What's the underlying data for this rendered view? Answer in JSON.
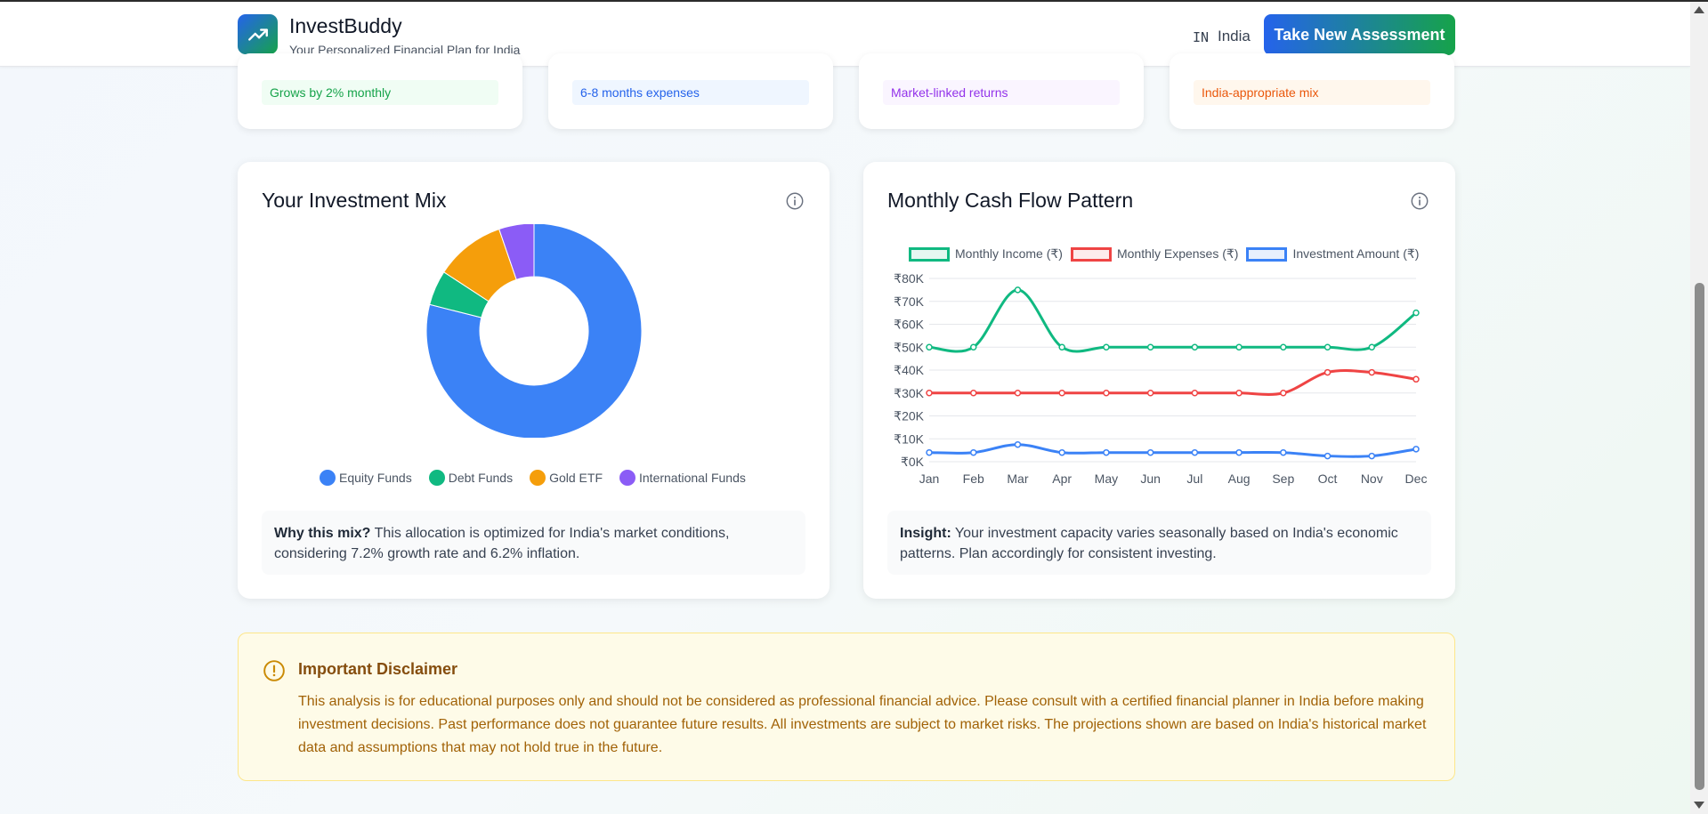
{
  "header": {
    "brand": "InvestBuddy",
    "tagline": "Your Personalized Financial Plan for India",
    "country_code": "IN",
    "country_name": "India",
    "cta_label": "Take New Assessment"
  },
  "summary_tags": [
    {
      "label": "Grows by 2% monthly",
      "bg": "#f0fdf4",
      "color": "#16a34a"
    },
    {
      "label": "6-8 months expenses",
      "bg": "#eff6ff",
      "color": "#2563eb"
    },
    {
      "label": "Market-linked returns",
      "bg": "#faf5ff",
      "color": "#9333ea"
    },
    {
      "label": "India-appropriate mix",
      "bg": "#fff7ed",
      "color": "#ea580c"
    }
  ],
  "investment_mix": {
    "title": "Your Investment Mix",
    "note_bold": "Why this mix?",
    "note_text": " This allocation is optimized for India's market conditions, considering 7.2% growth rate and 6.2% inflation."
  },
  "cash_flow": {
    "title": "Monthly Cash Flow Pattern",
    "note_bold": "Insight:",
    "note_text": " Your investment capacity varies seasonally based on India's economic patterns. Plan accordingly for consistent investing."
  },
  "disclaimer": {
    "title": "Important Disclaimer",
    "body": "This analysis is for educational purposes only and should not be considered as professional financial advice. Please consult with a certified financial planner in India before making investment decisions. Past performance does not guarantee future results. All investments are subject to market risks. The projections shown are based on India's historical market data and assumptions that may not hold true in the future."
  },
  "chart_data": [
    {
      "type": "pie",
      "title": "Your Investment Mix",
      "donut": true,
      "categories": [
        "Equity Funds",
        "Debt Funds",
        "Gold ETF",
        "International Funds"
      ],
      "values": [
        75,
        5,
        10,
        5
      ],
      "colors": [
        "#3b82f6",
        "#10b981",
        "#f59e0b",
        "#8b5cf6"
      ],
      "legend": "bottom"
    },
    {
      "type": "line",
      "title": "Monthly Cash Flow Pattern",
      "categories": [
        "Jan",
        "Feb",
        "Mar",
        "Apr",
        "May",
        "Jun",
        "Jul",
        "Aug",
        "Sep",
        "Oct",
        "Nov",
        "Dec"
      ],
      "series": [
        {
          "name": "Monthly Income (₹)",
          "color": "#10b981",
          "values": [
            50000,
            50000,
            75000,
            50000,
            50000,
            50000,
            50000,
            50000,
            50000,
            50000,
            50000,
            65000
          ]
        },
        {
          "name": "Monthly Expenses (₹)",
          "color": "#ef4444",
          "values": [
            30000,
            30000,
            30000,
            30000,
            30000,
            30000,
            30000,
            30000,
            30000,
            39000,
            39000,
            36000
          ]
        },
        {
          "name": "Investment Amount (₹)",
          "color": "#3b82f6",
          "values": [
            4000,
            4000,
            7500,
            4000,
            4000,
            4000,
            4000,
            4000,
            4000,
            2500,
            2500,
            5500
          ]
        }
      ],
      "ylim": [
        0,
        80000
      ],
      "yticks": [
        "₹0K",
        "₹10K",
        "₹20K",
        "₹30K",
        "₹40K",
        "₹50K",
        "₹60K",
        "₹70K",
        "₹80K"
      ],
      "legend": "top",
      "grid": true
    }
  ]
}
